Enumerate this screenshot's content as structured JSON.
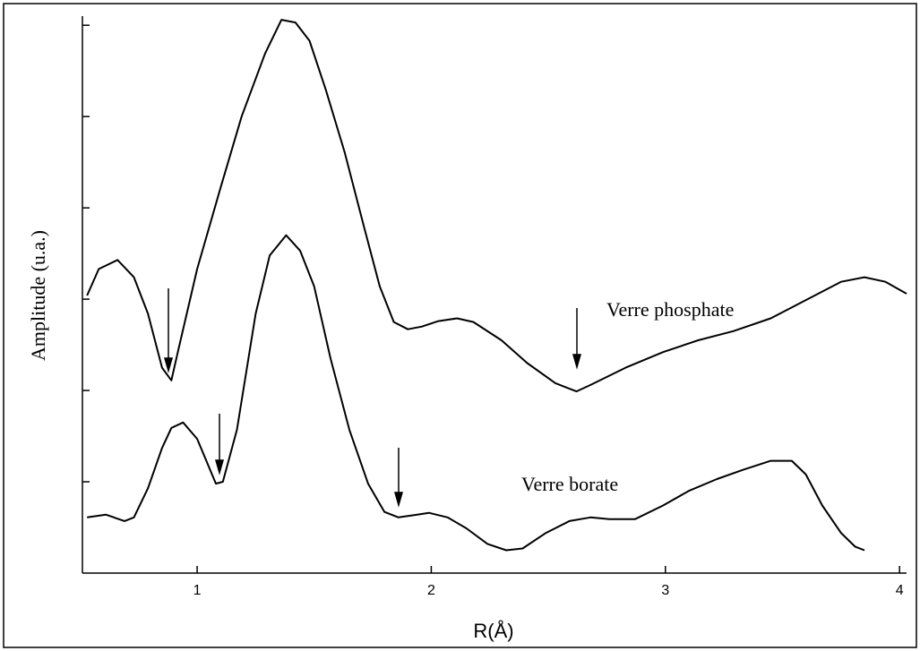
{
  "chart_data": {
    "type": "line",
    "xlabel": "R(Å)",
    "ylabel": "Amplitude (u.a.)",
    "xlim": [
      0.51,
      4.03
    ],
    "xticks": [
      1,
      2,
      3,
      4
    ],
    "ylim": [
      0,
      6.1
    ],
    "yticks": [
      1,
      2,
      3,
      4,
      5,
      6
    ],
    "ytick_labels": false,
    "grid": false,
    "series": [
      {
        "name": "Verre phosphate",
        "color": "#000000",
        "x": [
          0.53,
          0.58,
          0.66,
          0.73,
          0.79,
          0.85,
          0.89,
          0.92,
          1.0,
          1.1,
          1.19,
          1.29,
          1.36,
          1.42,
          1.48,
          1.55,
          1.63,
          1.71,
          1.78,
          1.84,
          1.9,
          1.96,
          2.03,
          2.11,
          2.18,
          2.3,
          2.41,
          2.53,
          2.62,
          2.68,
          2.83,
          2.99,
          3.14,
          3.29,
          3.45,
          3.6,
          3.75,
          3.85,
          3.94,
          4.03
        ],
        "values": [
          3.04,
          3.33,
          3.43,
          3.24,
          2.84,
          2.25,
          2.11,
          2.45,
          3.33,
          4.22,
          5.0,
          5.69,
          6.06,
          6.03,
          5.83,
          5.29,
          4.61,
          3.82,
          3.14,
          2.75,
          2.67,
          2.7,
          2.76,
          2.79,
          2.75,
          2.55,
          2.3,
          2.08,
          1.99,
          2.06,
          2.25,
          2.42,
          2.55,
          2.65,
          2.79,
          2.99,
          3.19,
          3.24,
          3.19,
          3.06
        ]
      },
      {
        "name": "Verre borate",
        "color": "#000000",
        "x": [
          0.53,
          0.61,
          0.69,
          0.73,
          0.79,
          0.85,
          0.89,
          0.94,
          1.0,
          1.08,
          1.11,
          1.17,
          1.25,
          1.31,
          1.38,
          1.44,
          1.5,
          1.57,
          1.65,
          1.73,
          1.8,
          1.86,
          1.94,
          1.99,
          2.07,
          2.15,
          2.24,
          2.32,
          2.39,
          2.49,
          2.59,
          2.68,
          2.76,
          2.87,
          2.99,
          3.1,
          3.22,
          3.33,
          3.45,
          3.54,
          3.6,
          3.67,
          3.75,
          3.81,
          3.85
        ],
        "values": [
          0.61,
          0.64,
          0.57,
          0.61,
          0.93,
          1.37,
          1.59,
          1.65,
          1.47,
          0.98,
          1.0,
          1.57,
          2.84,
          3.48,
          3.7,
          3.53,
          3.14,
          2.35,
          1.57,
          0.98,
          0.67,
          0.61,
          0.64,
          0.66,
          0.61,
          0.49,
          0.32,
          0.25,
          0.27,
          0.44,
          0.57,
          0.61,
          0.59,
          0.59,
          0.74,
          0.9,
          1.03,
          1.13,
          1.23,
          1.23,
          1.08,
          0.74,
          0.44,
          0.29,
          0.25
        ]
      }
    ]
  }
}
